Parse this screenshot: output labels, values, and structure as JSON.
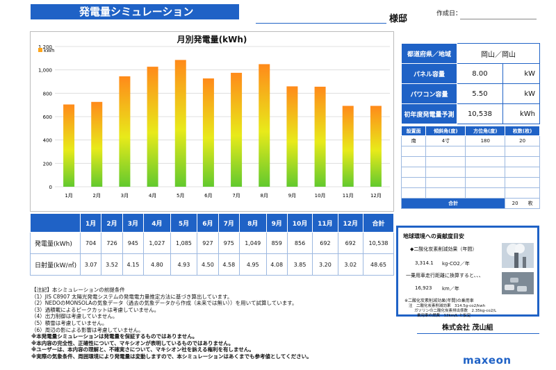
{
  "header": {
    "title": "発電量シミュレーション",
    "sama": "様邸",
    "date_label": "作成日："
  },
  "chart_data": {
    "type": "bar",
    "title": "月別発電量(kWh)",
    "legend": "kWh",
    "categories": [
      "1月",
      "2月",
      "3月",
      "4月",
      "5月",
      "6月",
      "7月",
      "8月",
      "9月",
      "10月",
      "11月",
      "12月"
    ],
    "values": [
      704,
      726,
      945,
      1027,
      1085,
      927,
      975,
      1049,
      859,
      856,
      692,
      692
    ],
    "yticks": [
      "0",
      "200",
      "400",
      "600",
      "800",
      "1,000",
      "1,200"
    ],
    "ylim": [
      0,
      1200
    ],
    "grid": true
  },
  "info": {
    "rows": [
      {
        "label": "都道府県／地域",
        "value": "岡山／岡山",
        "unit": ""
      },
      {
        "label": "パネル容量",
        "value": "8.00",
        "unit": "kW"
      },
      {
        "label": "パワコン容量",
        "value": "5.50",
        "unit": "kW"
      },
      {
        "label": "初年度発電量予測",
        "value": "10,538",
        "unit": "kWh"
      }
    ]
  },
  "panel": {
    "headers": [
      "設置面",
      "傾斜角(度)",
      "方位角(度)",
      "枚数(枚)"
    ],
    "rows": [
      [
        "南",
        "4寸",
        "180",
        "20"
      ]
    ],
    "total_label": "合計",
    "total_value": "20",
    "total_unit": "枚"
  },
  "monthly": {
    "headers": [
      "",
      "1月",
      "2月",
      "3月",
      "4月",
      "5月",
      "6月",
      "7月",
      "8月",
      "9月",
      "10月",
      "11月",
      "12月",
      "合計"
    ],
    "rows": [
      {
        "label": "発電量(kWh)",
        "values": [
          "704",
          "726",
          "945",
          "1,027",
          "1,085",
          "927",
          "975",
          "1,049",
          "859",
          "856",
          "692",
          "692",
          "10,538"
        ]
      },
      {
        "label": "日射量(kW/㎡)",
        "values": [
          "3.07",
          "3.52",
          "4.15",
          "4.80",
          "4.93",
          "4.50",
          "4.58",
          "4.95",
          "4.08",
          "3.85",
          "3.20",
          "3.02",
          "48.65"
        ]
      }
    ]
  },
  "notes": [
    "【注記】本シミュレーションの前提条件",
    "（1）JIS C8907 太陽光発電システムの発電電力量推定方法に基づき算出しています。",
    "（2）NEDOのMONSOLAの気象データ（過去の気象データから作成（未来では無い））を用いて試算しています。",
    "（3）過積載によるピークカットは考慮していません。",
    "（4）出力制御は考慮していません。",
    "（5）積雪は考慮していません。",
    "（6）周辺の影による影響は考慮していません。",
    "※本発電量シミュレーションは発電量を保証するものではありません。",
    "※本内容の完全性、正確性について、マキシオンが表明しているものではありません。",
    "※ユーザーは、本内容の理解と、不確実さについて、マキシオン社を訴える権利を有しません。",
    "※実際の気象条件、周囲環境により発電量は変動しますので、本シミュレーションはあくまでも参考値としてください。"
  ],
  "env": {
    "title": "地球環境への貢献度目安",
    "co2_heading": "◆二酸化炭素削減効果（年間）",
    "co2_value": "3,314.1",
    "co2_unit": "kg-CO2／年",
    "car_heading": "一乗用車走行距離に換算すると、、、",
    "car_value": "16,923",
    "car_unit": "km／年",
    "note1": "※二酸化炭素削減効果(年間)の乗用車",
    "note2": "注　二酸化炭素削減効果　314.5g-co2/kwh",
    "note3": "ガソリンの二酸化炭素排出係数　2.35kg-co2/L",
    "note4": "乗用車の燃費　12km/L と仮定"
  },
  "company": "株式会社 茂山組",
  "logo": "maxeon"
}
